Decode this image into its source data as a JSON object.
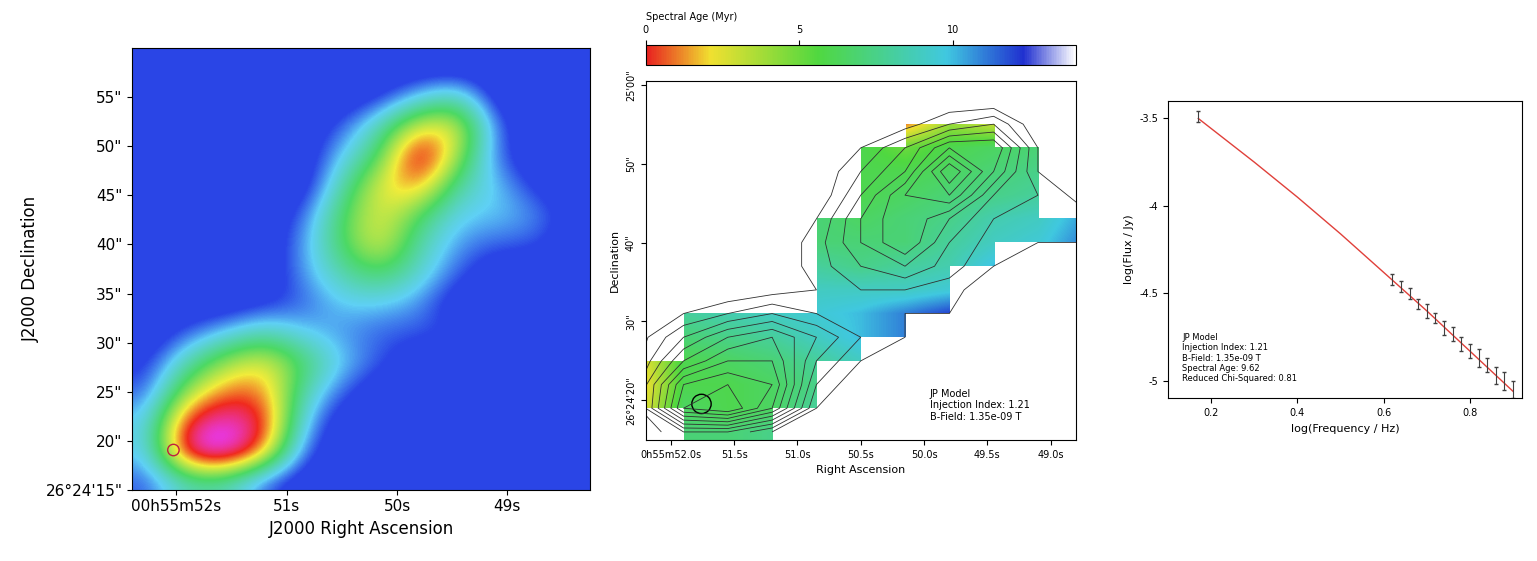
{
  "chart_data": [
    {
      "type": "heatmap",
      "x_label": "J2000 Right Ascension",
      "y_label": "J2000 Declination",
      "xlim": [
        52.4,
        48.25
      ],
      "ylim": [
        15,
        60
      ],
      "xticks": [
        {
          "value": 52,
          "label": "00h55m52s"
        },
        {
          "value": 51,
          "label": "51s"
        },
        {
          "value": 50,
          "label": "50s"
        },
        {
          "value": 49,
          "label": "49s"
        }
      ],
      "yticks": [
        {
          "value": 15,
          "label": "26°24'15\""
        },
        {
          "value": 20,
          "label": "20\""
        },
        {
          "value": 25,
          "label": "25\""
        },
        {
          "value": 30,
          "label": "30\""
        },
        {
          "value": 35,
          "label": "35\""
        },
        {
          "value": 40,
          "label": "40\""
        },
        {
          "value": 45,
          "label": "45\""
        },
        {
          "value": 50,
          "label": "50\""
        },
        {
          "value": 55,
          "label": "55\""
        }
      ],
      "ra": [
        52.25,
        51.9,
        51.55,
        51.2,
        50.85,
        50.5,
        50.15,
        49.8,
        49.45,
        49.1,
        48.75,
        48.4
      ],
      "dec": [
        58,
        55,
        52,
        49,
        46,
        43,
        40,
        37,
        34,
        31,
        28,
        25,
        22,
        19,
        16
      ],
      "color_range": [
        0,
        10
      ],
      "intensity": [
        [
          0,
          0,
          0,
          0,
          0,
          0,
          0,
          0,
          0,
          0,
          0,
          0
        ],
        [
          0,
          0,
          0,
          0,
          0,
          0,
          0.5,
          2,
          3,
          0,
          0,
          0
        ],
        [
          0,
          0,
          0,
          0,
          0,
          1,
          3,
          6,
          6,
          1,
          0,
          0
        ],
        [
          0,
          0,
          0,
          0,
          0,
          2,
          4,
          9,
          5,
          1,
          0,
          0
        ],
        [
          0,
          0,
          0,
          0,
          0,
          3,
          6,
          7,
          3,
          2,
          0.5,
          0
        ],
        [
          0,
          0,
          0,
          0,
          1,
          4,
          6,
          4,
          2,
          2,
          1.5,
          0.3
        ],
        [
          0,
          0,
          0,
          0,
          1.5,
          4,
          6,
          3,
          1.5,
          1,
          1,
          0
        ],
        [
          0,
          0,
          0,
          0,
          1.5,
          3,
          4,
          2.5,
          1,
          0,
          0,
          0
        ],
        [
          0,
          0,
          0,
          0.5,
          1,
          2,
          2,
          1.5,
          0,
          0,
          0,
          0
        ],
        [
          0,
          1,
          2,
          3,
          2,
          1.5,
          1,
          1,
          0.8,
          0,
          0,
          0
        ],
        [
          0.5,
          3,
          5,
          6,
          4,
          2,
          1,
          0,
          0,
          0,
          0,
          0
        ],
        [
          1,
          5,
          7,
          7,
          3,
          1,
          0,
          0,
          0,
          0,
          0,
          0
        ],
        [
          2,
          8,
          9,
          8,
          2,
          0,
          0,
          0,
          0,
          0,
          0,
          0
        ],
        [
          2,
          9,
          10,
          7,
          1,
          0,
          0,
          0,
          0,
          0,
          0,
          0
        ],
        [
          1,
          3,
          3,
          1,
          0,
          0,
          0,
          0,
          0,
          0,
          0,
          0
        ]
      ]
    },
    {
      "type": "heatmap",
      "x_label": "Right Ascension",
      "y_label": "Declination",
      "xlim": [
        52.2,
        48.8
      ],
      "ylim": [
        15,
        60.5
      ],
      "xticks": [
        {
          "value": 52,
          "label": "0h55m52.0s"
        },
        {
          "value": 51.5,
          "label": "51.5s"
        },
        {
          "value": 51,
          "label": "51.0s"
        },
        {
          "value": 50.5,
          "label": "50.5s"
        },
        {
          "value": 50,
          "label": "50.0s"
        },
        {
          "value": 49.5,
          "label": "49.5s"
        },
        {
          "value": 49,
          "label": "49.0s"
        }
      ],
      "yticks": [
        {
          "value": 20,
          "label": "26°24'20\""
        },
        {
          "value": 30,
          "label": "30\""
        },
        {
          "value": 40,
          "label": "40\""
        },
        {
          "value": 50,
          "label": "50\""
        },
        {
          "value": 60,
          "label": "25'00\""
        }
      ],
      "ra": [
        52.25,
        51.9,
        51.55,
        51.2,
        50.85,
        50.5,
        50.15,
        49.8,
        49.45,
        49.1,
        48.75,
        48.4
      ],
      "dec": [
        58,
        55,
        52,
        49,
        46,
        43,
        40,
        37,
        34,
        31,
        28,
        25,
        22,
        19,
        16
      ],
      "color_range": [
        0,
        14
      ],
      "colorbar_ticks": [
        0,
        5,
        10
      ],
      "colorbar_label": "Spectral Age (Myr)",
      "contour_levels": [
        1,
        2,
        3,
        4,
        5,
        6,
        7,
        8,
        9
      ],
      "annotation": "JP Model\nInjection Index: 1.21\nB-Field: 1.35e-09 T",
      "age": [
        [
          null,
          null,
          null,
          null,
          null,
          null,
          null,
          null,
          null,
          null,
          null,
          null
        ],
        [
          null,
          null,
          null,
          null,
          null,
          null,
          1,
          4,
          3,
          null,
          null,
          null
        ],
        [
          null,
          null,
          null,
          null,
          null,
          6,
          5,
          6,
          6.5,
          7,
          null,
          null
        ],
        [
          null,
          null,
          null,
          null,
          null,
          6,
          6,
          6.5,
          7,
          7.5,
          null,
          null
        ],
        [
          null,
          null,
          null,
          null,
          null,
          6,
          6.5,
          7,
          7.5,
          8,
          null,
          null
        ],
        [
          null,
          null,
          null,
          null,
          7,
          6.5,
          7,
          7.5,
          8.5,
          9,
          10.5,
          null
        ],
        [
          null,
          null,
          null,
          null,
          7,
          7,
          7,
          8,
          9,
          9.5,
          11,
          null
        ],
        [
          null,
          null,
          null,
          null,
          8,
          7.5,
          8,
          8.5,
          10,
          null,
          null,
          null
        ],
        [
          null,
          null,
          null,
          null,
          9,
          9,
          9,
          9.5,
          null,
          null,
          null,
          null
        ],
        [
          null,
          8,
          8.5,
          9,
          9.5,
          10,
          11,
          12,
          12.5,
          null,
          null,
          null
        ],
        [
          null,
          7,
          7.5,
          8,
          9,
          10,
          11,
          null,
          null,
          null,
          null,
          null
        ],
        [
          2,
          6,
          6.5,
          7,
          8,
          9,
          null,
          null,
          null,
          null,
          null,
          null
        ],
        [
          1.5,
          6,
          6,
          6.5,
          7.5,
          null,
          null,
          null,
          null,
          null,
          null,
          null
        ],
        [
          2,
          6.5,
          6,
          6.5,
          8,
          null,
          null,
          null,
          null,
          null,
          null,
          null
        ],
        [
          null,
          7,
          7,
          7.5,
          null,
          null,
          null,
          null,
          null,
          null,
          null,
          null
        ]
      ]
    },
    {
      "type": "line",
      "x_label": "log(Frequency / Hz)",
      "y_label": "log(Flux / Jy)",
      "xlim": [
        0.1,
        0.92
      ],
      "ylim": [
        -5.1,
        -3.4
      ],
      "xticks": [
        0.2,
        0.4,
        0.6,
        0.8
      ],
      "yticks": [
        -3.5,
        -4,
        -4.5,
        -5
      ],
      "annotation": "JP Model\nInjection Index: 1.21\nB-Field: 1.35e-09 T\nSpectral Age: 9.62\nReduced Chi-Squared: 0.81",
      "series": [
        {
          "type": "line",
          "color": "#e0403a",
          "x": [
            0.17,
            0.3,
            0.4,
            0.5,
            0.6,
            0.7,
            0.8,
            0.9
          ],
          "values": [
            -3.5,
            -3.75,
            -3.95,
            -4.16,
            -4.38,
            -4.6,
            -4.83,
            -5.06
          ]
        },
        {
          "type": "errorbar",
          "color": "#404040",
          "x": [
            0.17,
            0.62,
            0.64,
            0.66,
            0.68,
            0.7,
            0.72,
            0.74,
            0.76,
            0.78,
            0.8,
            0.82,
            0.84,
            0.86,
            0.88,
            0.9
          ],
          "values": [
            -3.49,
            -4.42,
            -4.46,
            -4.5,
            -4.56,
            -4.6,
            -4.64,
            -4.7,
            -4.73,
            -4.79,
            -4.83,
            -4.87,
            -4.91,
            -4.97,
            -5.0,
            -5.05
          ],
          "errors": [
            0.03,
            0.03,
            0.03,
            0.03,
            0.03,
            0.04,
            0.03,
            0.04,
            0.04,
            0.04,
            0.04,
            0.05,
            0.04,
            0.05,
            0.05,
            0.05
          ]
        }
      ]
    }
  ]
}
